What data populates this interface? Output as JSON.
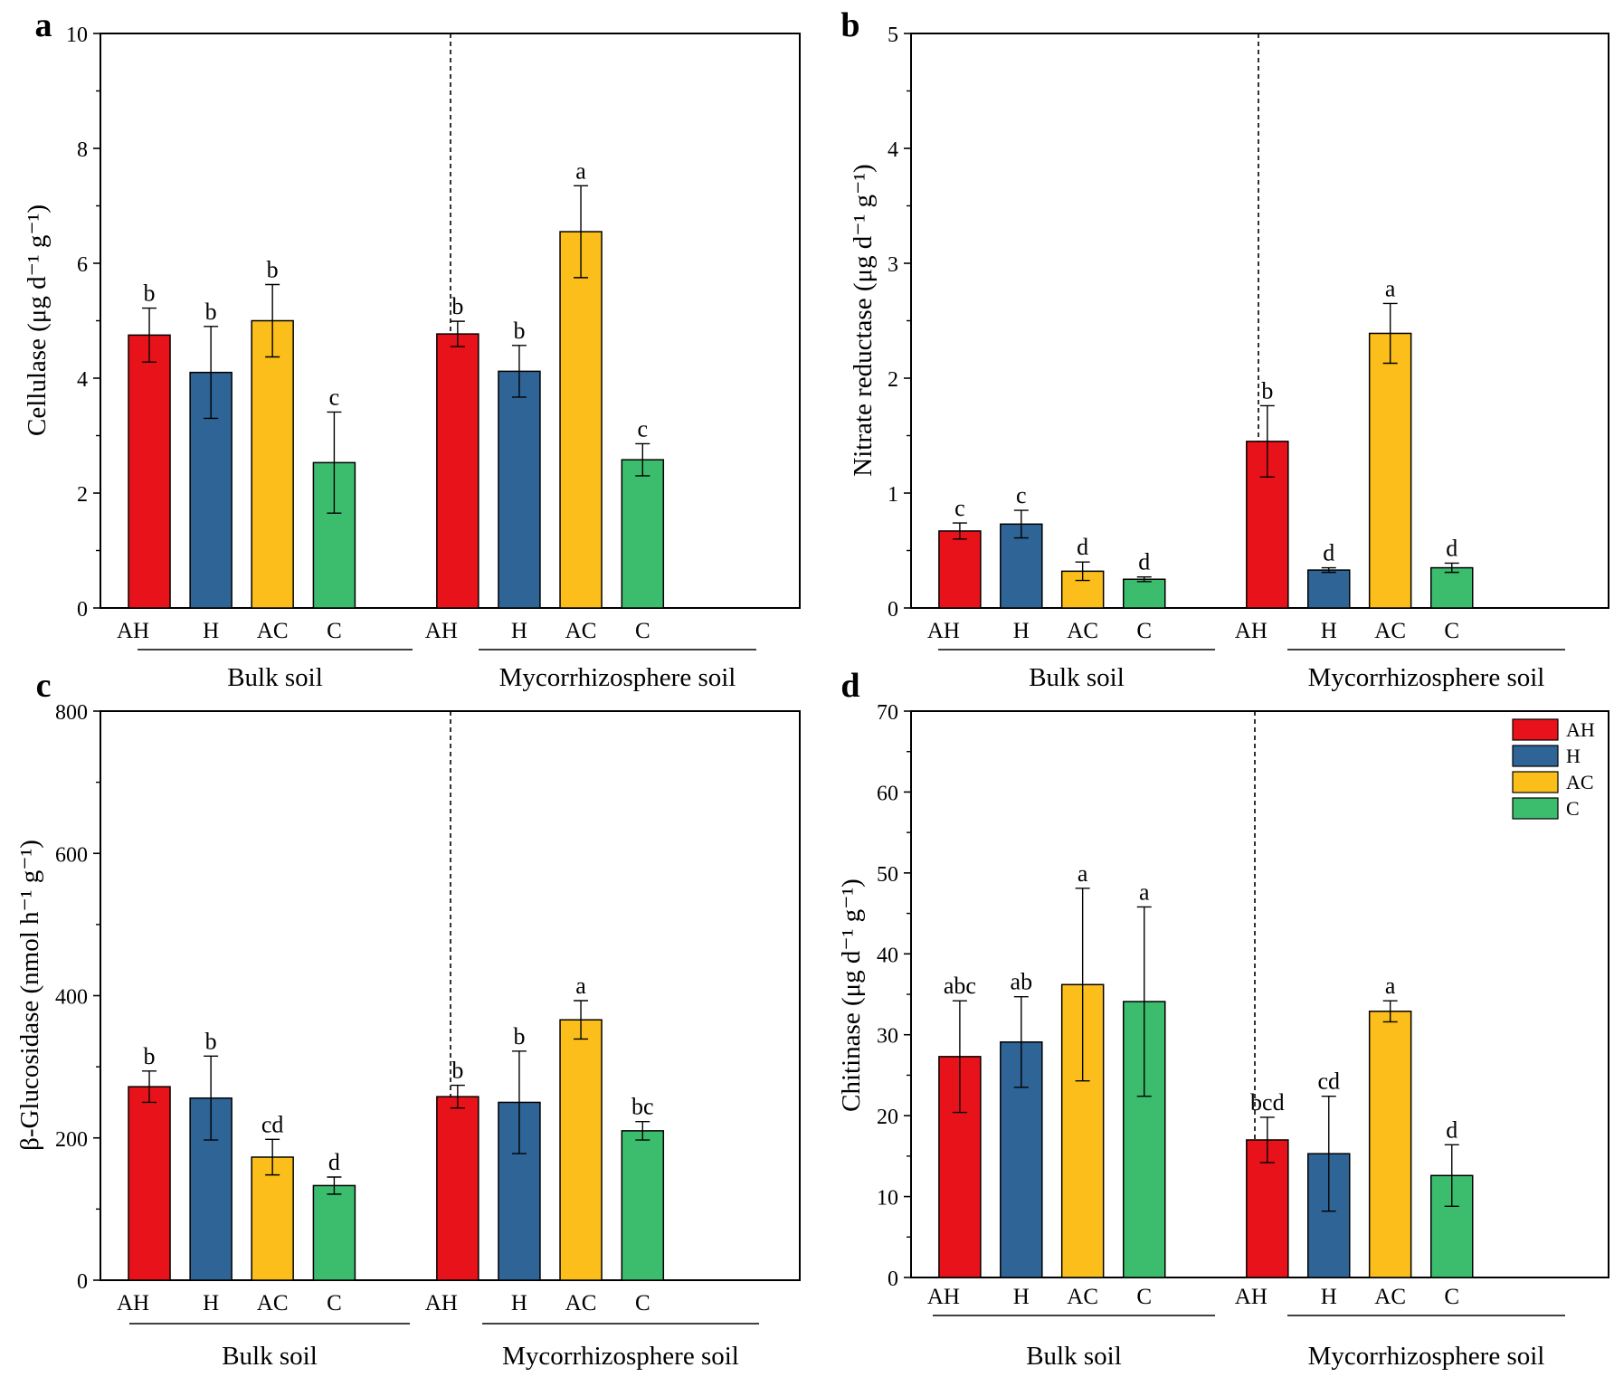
{
  "colors": {
    "AH": "#e8121a",
    "H": "#2f6496",
    "AC": "#fbbe1a",
    "C": "#3cbd6e"
  },
  "legend": [
    "AH",
    "H",
    "AC",
    "C"
  ],
  "chart_data": [
    {
      "type": "bar",
      "panel": "a",
      "ylabel": "Cellulase (μg d⁻¹ g⁻¹)",
      "ylim": [
        0,
        10
      ],
      "yticks": [
        0,
        2,
        4,
        6,
        8,
        10
      ],
      "groups": [
        {
          "name": "Bulk soil",
          "categories": [
            "AH",
            "H",
            "AC",
            "C"
          ],
          "values": [
            4.75,
            4.1,
            5.0,
            2.53
          ],
          "errors": [
            0.47,
            0.8,
            0.63,
            0.88
          ],
          "letters": [
            "b",
            "b",
            "b",
            "c"
          ]
        },
        {
          "name": "Mycorrhizosphere soil",
          "categories": [
            "AH",
            "H",
            "AC",
            "C"
          ],
          "values": [
            4.77,
            4.12,
            6.55,
            2.58
          ],
          "errors": [
            0.22,
            0.45,
            0.8,
            0.28
          ],
          "letters": [
            "b",
            "b",
            "a",
            "c"
          ]
        }
      ]
    },
    {
      "type": "bar",
      "panel": "b",
      "ylabel": "Nitrate reductase (μg d⁻¹ g⁻¹)",
      "ylim": [
        0,
        5
      ],
      "yticks": [
        0,
        1,
        2,
        3,
        4,
        5
      ],
      "groups": [
        {
          "name": "Bulk soil",
          "categories": [
            "AH",
            "H",
            "AC",
            "C"
          ],
          "values": [
            0.67,
            0.73,
            0.32,
            0.25
          ],
          "errors": [
            0.07,
            0.12,
            0.08,
            0.02
          ],
          "letters": [
            "c",
            "c",
            "d",
            "d"
          ]
        },
        {
          "name": "Mycorrhizosphere soil",
          "categories": [
            "AH",
            "H",
            "AC",
            "C"
          ],
          "values": [
            1.45,
            0.33,
            2.39,
            0.35
          ],
          "errors": [
            0.31,
            0.02,
            0.26,
            0.04
          ],
          "letters": [
            "b",
            "d",
            "a",
            "d"
          ]
        }
      ]
    },
    {
      "type": "bar",
      "panel": "c",
      "ylabel": "β-Glucosidase (nmol h⁻¹ g⁻¹)",
      "ylim": [
        0,
        800
      ],
      "yticks": [
        0,
        200,
        400,
        600,
        800
      ],
      "groups": [
        {
          "name": "Bulk soil",
          "categories": [
            "AH",
            "H",
            "AC",
            "C"
          ],
          "values": [
            272,
            256,
            173,
            133
          ],
          "errors": [
            22,
            59,
            25,
            12
          ],
          "letters": [
            "b",
            "b",
            "cd",
            "d"
          ]
        },
        {
          "name": "Mycorrhizosphere soil",
          "categories": [
            "AH",
            "H",
            "AC",
            "C"
          ],
          "values": [
            258,
            250,
            366,
            210
          ],
          "errors": [
            16,
            72,
            27,
            13
          ],
          "letters": [
            "b",
            "b",
            "a",
            "bc"
          ]
        }
      ]
    },
    {
      "type": "bar",
      "panel": "d",
      "ylabel": "Chitinase (μg d⁻¹ g⁻¹)",
      "ylim": [
        0,
        70
      ],
      "yticks": [
        0,
        10,
        20,
        30,
        40,
        50,
        60,
        70
      ],
      "groups": [
        {
          "name": "Bulk soil",
          "categories": [
            "AH",
            "H",
            "AC",
            "C"
          ],
          "values": [
            27.3,
            29.1,
            36.2,
            34.1
          ],
          "errors": [
            6.9,
            5.6,
            11.9,
            11.7
          ],
          "letters": [
            "abc",
            "ab",
            "a",
            "a"
          ]
        },
        {
          "name": "Mycorrhizosphere soil",
          "categories": [
            "AH",
            "H",
            "AC",
            "C"
          ],
          "values": [
            17.0,
            15.3,
            32.9,
            12.6
          ],
          "errors": [
            2.8,
            7.1,
            1.3,
            3.8
          ],
          "letters": [
            "bcd",
            "cd",
            "a",
            "d"
          ]
        }
      ]
    }
  ]
}
